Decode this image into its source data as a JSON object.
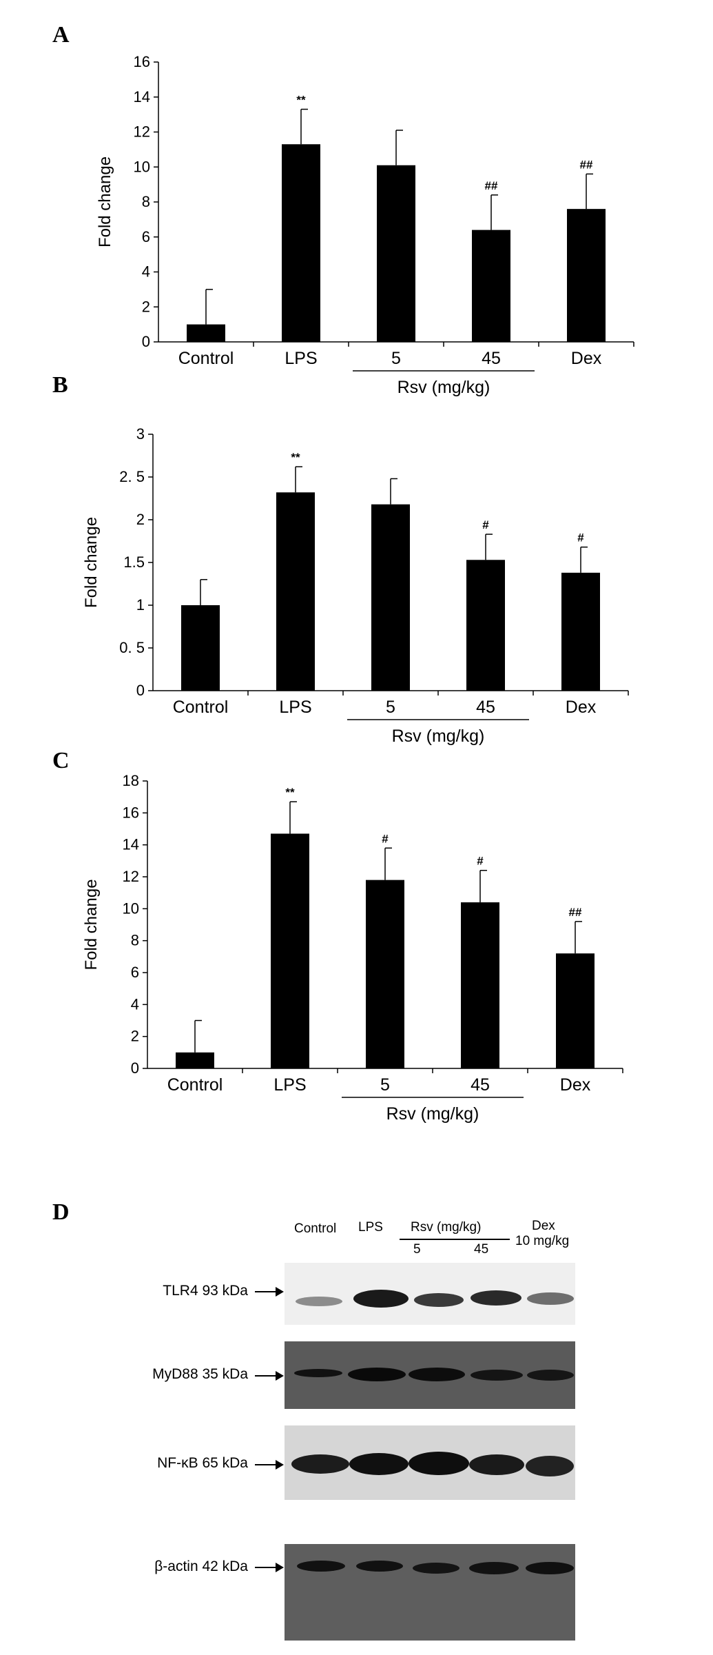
{
  "panels": [
    {
      "letter": "A",
      "chart_data": {
        "type": "bar",
        "categories": [
          "Control",
          "LPS",
          "5",
          "45",
          "Dex"
        ],
        "values": [
          1.0,
          11.3,
          10.1,
          6.4,
          7.6
        ],
        "errors": [
          2.0,
          2.0,
          2.0,
          2.0,
          2.0
        ],
        "significance": [
          "",
          "**",
          "",
          "##",
          "##"
        ],
        "ylabel": "Fold change",
        "ylim": [
          0,
          16
        ],
        "yticks": [
          "0",
          "2",
          "4",
          "6",
          "8",
          "10",
          "12",
          "14",
          "16"
        ],
        "group_label": "Rsv (mg/kg)"
      }
    },
    {
      "letter": "B",
      "chart_data": {
        "type": "bar",
        "categories": [
          "Control",
          "LPS",
          "5",
          "45",
          "Dex"
        ],
        "values": [
          1.0,
          2.32,
          2.18,
          1.53,
          1.38
        ],
        "errors": [
          0.3,
          0.3,
          0.3,
          0.3,
          0.3
        ],
        "significance": [
          "",
          "**",
          "",
          "#",
          "#"
        ],
        "ylabel": "Fold change",
        "ylim": [
          0,
          3
        ],
        "yticks": [
          "0",
          "0. 5",
          "1",
          "1.5",
          "2",
          "2. 5",
          "3"
        ],
        "group_label": "Rsv (mg/kg)"
      }
    },
    {
      "letter": "C",
      "chart_data": {
        "type": "bar",
        "categories": [
          "Control",
          "LPS",
          "5",
          "45",
          "Dex"
        ],
        "values": [
          1.0,
          14.7,
          11.8,
          10.4,
          7.2
        ],
        "errors": [
          2.0,
          2.0,
          2.0,
          2.0,
          2.0
        ],
        "significance": [
          "",
          "**",
          "#",
          "#",
          "##"
        ],
        "ylabel": "Fold change",
        "ylim": [
          0,
          18
        ],
        "yticks": [
          "0",
          "2",
          "4",
          "6",
          "8",
          "10",
          "12",
          "14",
          "16",
          "18"
        ],
        "group_label": "Rsv (mg/kg)"
      }
    }
  ],
  "blot": {
    "letter": "D",
    "lanes": {
      "control": "Control",
      "lps": "LPS",
      "rsv": "Rsv (mg/kg)",
      "rsv5": "5",
      "rsv45": "45",
      "dex": "Dex",
      "dex_dose": "10 mg/kg"
    },
    "proteins": [
      {
        "name": "TLR4 93 kDa"
      },
      {
        "name": "MyD88 35 kDa"
      },
      {
        "name": "NF-κB 65 kDa"
      },
      {
        "name": "β-actin 42 kDa"
      }
    ]
  }
}
